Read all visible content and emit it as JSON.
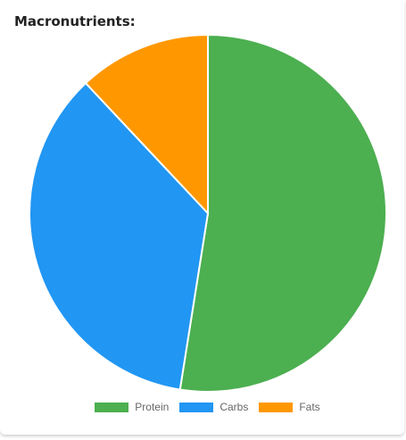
{
  "card": {
    "title": "Macronutrients:"
  },
  "chart_data": {
    "type": "pie",
    "categories": [
      "Protein",
      "Carbs",
      "Fats"
    ],
    "values": [
      52.5,
      35.5,
      12
    ],
    "colors": [
      "#4caf50",
      "#2196f3",
      "#ff9800"
    ],
    "legend_position": "bottom"
  }
}
